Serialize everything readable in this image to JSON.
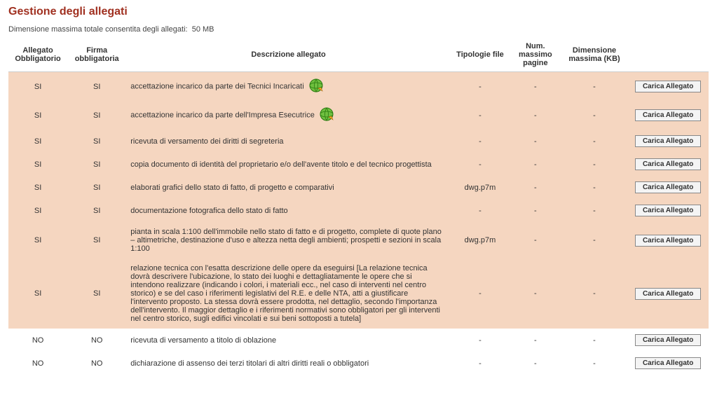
{
  "title": "Gestione degli allegati",
  "subtitle_label": "Dimensione massima totale consentita degli allegati:",
  "subtitle_value": "50 MB",
  "columns": {
    "obbligatorio": "Allegato Obbligatorio",
    "firma": "Firma obbligatoria",
    "descrizione": "Descrizione allegato",
    "tipologie": "Tipologie file",
    "num_pagine": "Num. massimo pagine",
    "dimensione": "Dimensione massima (KB)"
  },
  "button_label": "Carica Allegato",
  "colors": {
    "title": "#a03020",
    "row_highlight": "#f5d6c0",
    "row_plain": "#ffffff"
  },
  "rows": [
    {
      "obb": "SI",
      "firma": "SI",
      "desc": "accettazione incarico da parte dei Tecnici Incaricati",
      "tip": "-",
      "num": "-",
      "dim": "-",
      "highlight": true,
      "icon": true
    },
    {
      "obb": "SI",
      "firma": "SI",
      "desc": "accettazione incarico da parte dell'Impresa Esecutrice",
      "tip": "-",
      "num": "-",
      "dim": "-",
      "highlight": true,
      "icon": true
    },
    {
      "obb": "SI",
      "firma": "SI",
      "desc": "ricevuta di versamento dei diritti di segreteria",
      "tip": "-",
      "num": "-",
      "dim": "-",
      "highlight": true,
      "icon": false
    },
    {
      "obb": "SI",
      "firma": "SI",
      "desc": "copia documento di identità del proprietario e/o dell'avente titolo e del tecnico progettista",
      "tip": "-",
      "num": "-",
      "dim": "-",
      "highlight": true,
      "icon": false
    },
    {
      "obb": "SI",
      "firma": "SI",
      "desc": "elaborati grafici dello stato di fatto, di progetto e comparativi",
      "tip": "dwg.p7m",
      "num": "-",
      "dim": "-",
      "highlight": true,
      "icon": false
    },
    {
      "obb": "SI",
      "firma": "SI",
      "desc": "documentazione fotografica dello stato di fatto",
      "tip": "-",
      "num": "-",
      "dim": "-",
      "highlight": true,
      "icon": false
    },
    {
      "obb": "SI",
      "firma": "SI",
      "desc": "pianta in scala 1:100 dell'immobile nello stato di fatto e di progetto, complete di quote plano – altimetriche, destinazione d'uso e altezza netta degli ambienti; prospetti e sezioni in scala 1:100",
      "tip": "dwg.p7m",
      "num": "-",
      "dim": "-",
      "highlight": true,
      "icon": false
    },
    {
      "obb": "SI",
      "firma": "SI",
      "desc": "relazione tecnica con l'esatta descrizione delle opere da eseguirsi [La relazione tecnica dovrà descrivere l'ubicazione, lo stato dei luoghi e dettagliatamente le opere che si intendono realizzare (indicando i colori, i materiali ecc., nel caso di interventi nel centro storico) e se del caso i riferimenti legislativi del R.E. e delle NTA, atti a giustificare l'intervento proposto. La stessa dovrà essere prodotta, nel dettaglio, secondo l'importanza dell'intervento. Il maggior dettaglio e i riferimenti normativi sono obbligatori per gli interventi nel centro storico, sugli edifici vincolati e sui beni sottoposti a tutela]",
      "tip": "-",
      "num": "-",
      "dim": "-",
      "highlight": true,
      "icon": false
    },
    {
      "obb": "NO",
      "firma": "NO",
      "desc": "ricevuta di versamento a titolo di oblazione",
      "tip": "-",
      "num": "-",
      "dim": "-",
      "highlight": false,
      "icon": false
    },
    {
      "obb": "NO",
      "firma": "NO",
      "desc": "dichiarazione di assenso dei terzi titolari di altri diritti reali o obbligatori",
      "tip": "-",
      "num": "-",
      "dim": "-",
      "highlight": false,
      "icon": false
    }
  ]
}
